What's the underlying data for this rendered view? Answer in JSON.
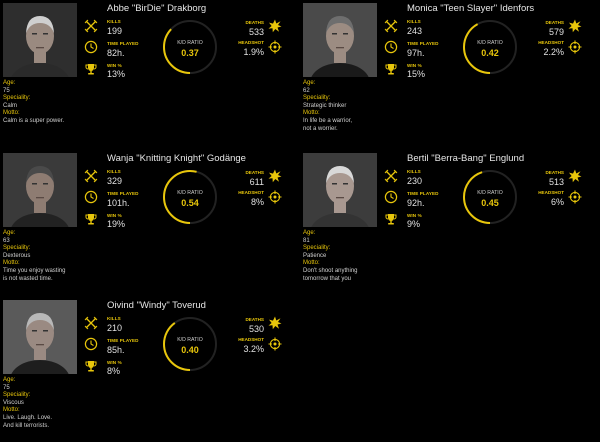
{
  "colors": {
    "accent": "#e8c60b",
    "text": "#e0e0e0",
    "ring_track": "#222222"
  },
  "labels": {
    "kills": "KILLS",
    "time_played": "TIME PLAYED",
    "win": "WIN %",
    "kd": "K/D RATIO",
    "deaths": "DEATHS",
    "headshot": "HEADSHOT",
    "age": "Age:",
    "speciality": "Speciality:",
    "motto": "Motto:"
  },
  "icons": [
    "crossed-swords-icon",
    "clock-icon",
    "trophy-icon",
    "explosion-icon",
    "crosshair-icon"
  ],
  "players": [
    {
      "name": "Abbe \"BirDie\" Drakborg",
      "kills": "199",
      "time": "82h.",
      "win": "13%",
      "kd": "0.37",
      "kd_fraction": 0.37,
      "deaths": "533",
      "headshot": "1.9%",
      "age": "75",
      "speciality": "Calm",
      "motto": "Calm is a super power."
    },
    {
      "name": "Monica \"Teen Slayer\" Idenfors",
      "kills": "243",
      "time": "97h.",
      "win": "15%",
      "kd": "0.42",
      "kd_fraction": 0.42,
      "deaths": "579",
      "headshot": "2.2%",
      "age": "62",
      "speciality": "Strategic thinker",
      "motto": "In life be a warrior,\nnot a worrier."
    },
    {
      "name": "Wanja \"Knitting Knight\" Godänge",
      "kills": "329",
      "time": "101h.",
      "win": "19%",
      "kd": "0.54",
      "kd_fraction": 0.54,
      "deaths": "611",
      "headshot": "8%",
      "age": "63",
      "speciality": "Dexterous",
      "motto": "Time you enjoy wasting\nis not wasted time."
    },
    {
      "name": "Bertil \"Berra-Bang\" Englund",
      "kills": "230",
      "time": "92h.",
      "win": "9%",
      "kd": "0.45",
      "kd_fraction": 0.45,
      "deaths": "513",
      "headshot": "6%",
      "age": "81",
      "speciality": "Patience",
      "motto": "Don't shoot anything\ntomorrow that you"
    },
    {
      "name": "Oivind \"Windy\" Toverud",
      "kills": "210",
      "time": "85h.",
      "win": "8%",
      "kd": "0.40",
      "kd_fraction": 0.4,
      "deaths": "530",
      "headshot": "3.2%",
      "age": "75",
      "speciality": "Viscous",
      "motto": "Live. Laugh. Love.\nAnd kill terrorists."
    }
  ]
}
